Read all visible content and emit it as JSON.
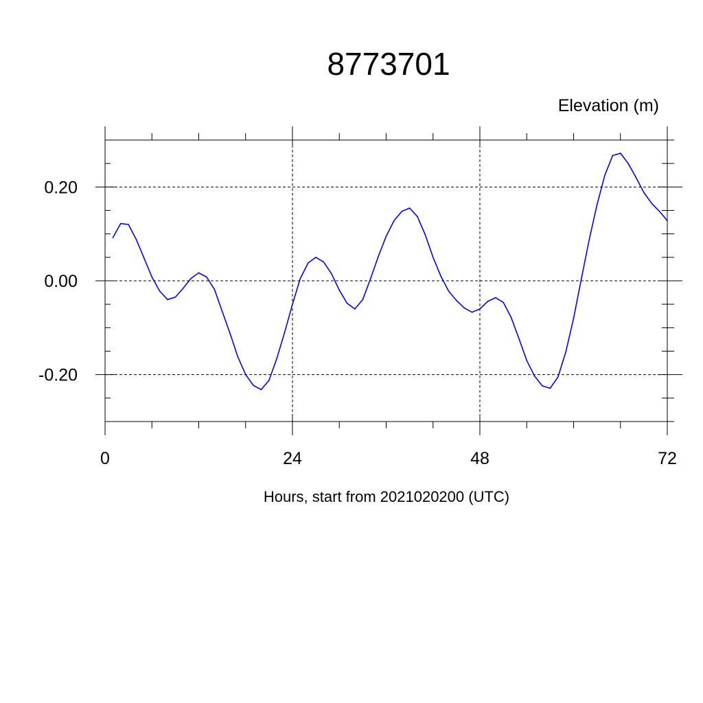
{
  "chart_data": {
    "type": "line",
    "title": "8773701",
    "ylabel": "Elevation (m)",
    "xlabel": "Hours, start from 2021020200 (UTC)",
    "xlim": [
      0,
      72
    ],
    "ylim": [
      -0.3,
      0.3
    ],
    "x_ticks": [
      0,
      24,
      48,
      72
    ],
    "x_tick_labels": [
      "0",
      "24",
      "48",
      "72"
    ],
    "y_ticks": [
      -0.2,
      0.0,
      0.2
    ],
    "y_tick_labels": [
      "-0.20",
      "0.00",
      "0.20"
    ],
    "grid": true,
    "series": [
      {
        "color": "#0000ff",
        "x": [
          1,
          2,
          3,
          4,
          5,
          6,
          7,
          8,
          9,
          10,
          11,
          12,
          13,
          14,
          15,
          16,
          17,
          18,
          19,
          20,
          21,
          22,
          23,
          24,
          25,
          26,
          27,
          28,
          29,
          30,
          31,
          32,
          33,
          34,
          35,
          36,
          37,
          38,
          39,
          40,
          41,
          42,
          43,
          44,
          45,
          46,
          47,
          48,
          49,
          50,
          51,
          52,
          53,
          54,
          55,
          56,
          57,
          58,
          59,
          60,
          61,
          62,
          63,
          64,
          65,
          66,
          67,
          68,
          69,
          70,
          71,
          72
        ],
        "y": [
          0.092,
          0.122,
          0.12,
          0.088,
          0.048,
          0.008,
          -0.022,
          -0.04,
          -0.035,
          -0.016,
          0.005,
          0.017,
          0.008,
          -0.018,
          -0.065,
          -0.112,
          -0.162,
          -0.2,
          -0.223,
          -0.232,
          -0.212,
          -0.165,
          -0.11,
          -0.05,
          0.005,
          0.038,
          0.05,
          0.04,
          0.015,
          -0.02,
          -0.048,
          -0.06,
          -0.04,
          0.005,
          0.052,
          0.095,
          0.128,
          0.148,
          0.155,
          0.137,
          0.098,
          0.05,
          0.01,
          -0.022,
          -0.042,
          -0.058,
          -0.067,
          -0.06,
          -0.044,
          -0.036,
          -0.046,
          -0.078,
          -0.123,
          -0.17,
          -0.203,
          -0.224,
          -0.229,
          -0.205,
          -0.152,
          -0.08,
          0.005,
          0.088,
          0.162,
          0.225,
          0.267,
          0.272,
          0.25,
          0.22,
          0.188,
          0.165,
          0.148,
          0.128
        ]
      }
    ]
  }
}
